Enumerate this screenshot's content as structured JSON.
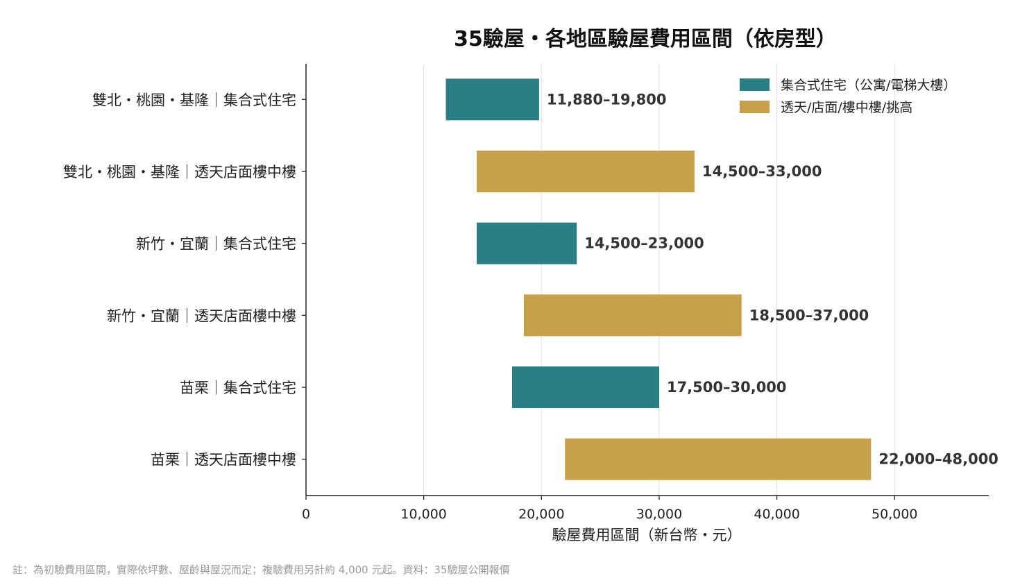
{
  "chart_data": {
    "type": "bar",
    "orientation": "horizontal",
    "title": "35驗屋・各地區驗屋費用區間（依房型）",
    "xlabel": "驗屋費用區間（新台幣・元）",
    "ylabel": "",
    "xlim": [
      0,
      58000
    ],
    "xticks": [
      0,
      10000,
      20000,
      30000,
      40000,
      50000
    ],
    "xtick_labels": [
      "0",
      "10,000",
      "20,000",
      "30,000",
      "40,000",
      "50,000"
    ],
    "grid": "vertical",
    "legend_position": "top-right",
    "colors": {
      "集合式住宅": "#2a7f85",
      "透天": "#c8a04a"
    },
    "legend": [
      {
        "key": "集合式住宅",
        "label": "集合式住宅（公寓/電梯大樓）"
      },
      {
        "key": "透天",
        "label": "透天/店面/樓中樓/挑高"
      }
    ],
    "categories": [
      "雙北・桃園・基隆｜集合式住宅",
      "雙北・桃園・基隆｜透天店面樓中樓",
      "新竹・宜蘭｜集合式住宅",
      "新竹・宜蘭｜透天店面樓中樓",
      "苗栗｜集合式住宅",
      "苗栗｜透天店面樓中樓"
    ],
    "bars": [
      {
        "category": "雙北・桃園・基隆｜集合式住宅",
        "type": "集合式住宅",
        "min": 11880,
        "max": 19800,
        "label": "11,880–19,800"
      },
      {
        "category": "雙北・桃園・基隆｜透天店面樓中樓",
        "type": "透天",
        "min": 14500,
        "max": 33000,
        "label": "14,500–33,000"
      },
      {
        "category": "新竹・宜蘭｜集合式住宅",
        "type": "集合式住宅",
        "min": 14500,
        "max": 23000,
        "label": "14,500–23,000"
      },
      {
        "category": "新竹・宜蘭｜透天店面樓中樓",
        "type": "透天",
        "min": 18500,
        "max": 37000,
        "label": "18,500–37,000"
      },
      {
        "category": "苗栗｜集合式住宅",
        "type": "集合式住宅",
        "min": 17500,
        "max": 30000,
        "label": "17,500–30,000"
      },
      {
        "category": "苗栗｜透天店面樓中樓",
        "type": "透天",
        "min": 22000,
        "max": 48000,
        "label": "22,000–48,000"
      }
    ]
  },
  "footnote": "註：為初驗費用區間，實際依坪數、屋齡與屋況而定；複驗費用另計約 4,000 元起。資料：35驗屋公開報價"
}
